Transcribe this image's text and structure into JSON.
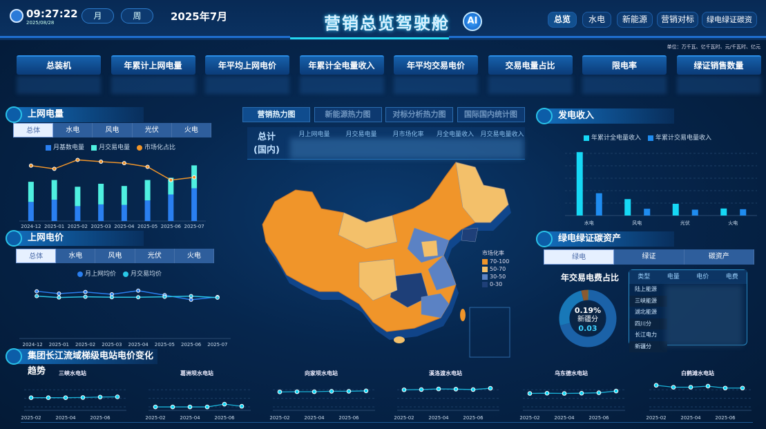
{
  "header": {
    "time": "09:27:22",
    "date": "2025/08/28",
    "btn_month": "月",
    "btn_week": "周",
    "period": "2025年7月",
    "title": "营销总览驾驶舱",
    "ai": "AI",
    "nav": [
      {
        "label": "总览",
        "active": true
      },
      {
        "label": "水电"
      },
      {
        "label": "新能源"
      },
      {
        "label": "营销对标"
      },
      {
        "label": "绿电绿证碳资"
      }
    ]
  },
  "unit": "单位：万千瓦、亿千瓦时、元/千瓦时、亿元",
  "kpis": [
    "总装机",
    "年累计上网电量",
    "年平均上网电价",
    "年累计全电量收入",
    "年平均交易电价",
    "交易电量占比",
    "限电率",
    "绿证销售数量"
  ],
  "left": {
    "p1": {
      "title": "上网电量",
      "tabs": [
        "总体",
        "水电",
        "风电",
        "光伏",
        "火电"
      ],
      "legend": [
        "月基数电量",
        "月交易电量",
        "市场化占比"
      ]
    },
    "p2": {
      "title": "上网电价",
      "tabs": [
        "总体",
        "水电",
        "风电",
        "光伏",
        "火电"
      ],
      "legend": [
        "月上网均价",
        "月交易均价"
      ]
    }
  },
  "center": {
    "tabs": [
      "营销热力图",
      "新能源热力图",
      "对标分析热力图",
      "国际国内统计图"
    ],
    "total_l1": "总计",
    "total_l2": "(国内)",
    "cols": [
      "月上网电量",
      "月交易电量",
      "月市场化率",
      "月全电量收入",
      "月交易电量收入"
    ],
    "map_legend": {
      "title": "市场化率",
      "items": [
        {
          "label": "70-100",
          "color": "#f0952a"
        },
        {
          "label": "50-70",
          "color": "#f3c06a"
        },
        {
          "label": "30-50",
          "color": "#5b82c4"
        },
        {
          "label": "0-30",
          "color": "#1e3f78"
        }
      ]
    }
  },
  "right": {
    "p1": {
      "title": "发电收入",
      "legend": [
        "年累计全电量收入",
        "年累计交易电量收入"
      ]
    },
    "p2": {
      "title": "绿电绿证碳资产",
      "tabs": [
        "绿电",
        "绿证",
        "碳资产"
      ],
      "donut_title": "年交易电费占比",
      "donut_pct": "0.19%",
      "donut_name": "新疆分",
      "donut_value": "0.03",
      "table_headers": [
        "类型",
        "电量",
        "电价",
        "电费"
      ],
      "table_rows": [
        "陆上能源",
        "三峡能源",
        "湖北能源",
        "四川分",
        "长江电力",
        "新疆分"
      ]
    }
  },
  "bottom": {
    "title": "集团长江流域梯级电站电价变化趋势"
  },
  "chart_data": [
    {
      "type": "bar",
      "id": "c1",
      "categories": [
        "2024-12",
        "2025-01",
        "2025-02",
        "2025-03",
        "2025-04",
        "2025-05",
        "2025-06",
        "2025-07"
      ],
      "series": [
        {
          "name": "月基数电量",
          "values": [
            77,
            86,
            60,
            67,
            65,
            83,
            107,
            132
          ],
          "color": "#2a7ff0"
        },
        {
          "name": "月交易电量",
          "values": [
            81,
            79,
            78,
            83,
            76,
            82,
            67,
            92
          ],
          "color": "#4ff0e0"
        },
        {
          "name": "市场化占比",
          "type": "line",
          "values": [
            223,
            210,
            246,
            239,
            233,
            218,
            165,
            176
          ],
          "color": "#f0952a"
        }
      ],
      "stacked": true
    },
    {
      "type": "line",
      "id": "c2",
      "categories": [
        "2024-12",
        "2025-01",
        "2025-02",
        "2025-03",
        "2025-04",
        "2025-05",
        "2025-06",
        "2025-07"
      ],
      "series": [
        {
          "name": "月上网均价",
          "values": [
            207,
            197,
            204,
            194,
            210,
            190,
            170,
            182
          ],
          "color": "#2a7ff0"
        },
        {
          "name": "月交易均价",
          "values": [
            186,
            180,
            183,
            181,
            181,
            183,
            186,
            179
          ],
          "color": "#2ac8e8"
        }
      ]
    },
    {
      "type": "bar",
      "id": "c3",
      "categories": [
        "水电",
        "风电",
        "光伏",
        "火电"
      ],
      "series": [
        {
          "name": "年累计全电量收入",
          "values": [
            270,
            70,
            50,
            30
          ],
          "color": "#16d8f5"
        },
        {
          "name": "年累计交易电量收入",
          "values": [
            95,
            29,
            25,
            27
          ],
          "color": "#1f8cf0"
        }
      ]
    },
    {
      "type": "pie",
      "id": "c4",
      "slices": [
        {
          "name": "新疆分",
          "value": 0.19,
          "color": "#1fb37a"
        },
        {
          "name": "",
          "value": 70,
          "color": "#1b62a8"
        },
        {
          "name": "",
          "value": 25,
          "color": "#1878b8"
        },
        {
          "name": "",
          "value": 4,
          "color": "#8a5a30"
        }
      ]
    },
    {
      "type": "line",
      "id": "s",
      "x": [
        "2025-02",
        "2025-03",
        "2025-04",
        "2025-05",
        "2025-06",
        "2025-07"
      ],
      "xticks": [
        "2025-02",
        "2025-04",
        "2025-06"
      ],
      "ylim": [
        0,
        130
      ],
      "stations": [
        {
          "name": "三峡水电站",
          "values": [
            59,
            59,
            59,
            60,
            62,
            63
          ]
        },
        {
          "name": "葛洲坝水电站",
          "values": [
            16,
            16,
            16,
            16,
            29,
            19
          ]
        },
        {
          "name": "向家坝水电站",
          "values": [
            86,
            87,
            87,
            89,
            89,
            91
          ]
        },
        {
          "name": "溪洛渡水电站",
          "values": [
            96,
            97,
            100,
            99,
            97,
            103
          ]
        },
        {
          "name": "乌东德水电站",
          "values": [
            79,
            80,
            79,
            80,
            82,
            90
          ]
        },
        {
          "name": "白鹤滩水电站",
          "values": [
            117,
            108,
            108,
            113,
            104,
            104
          ]
        }
      ]
    }
  ]
}
